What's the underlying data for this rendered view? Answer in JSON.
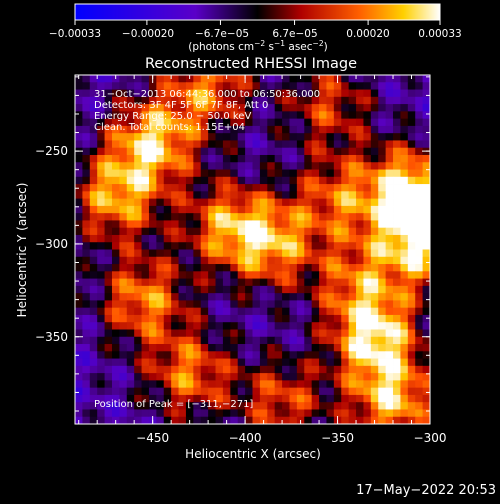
{
  "chart_data": {
    "type": "heatmap",
    "title": "Reconstructed RHESSI Image",
    "xlabel": "Heliocentric X (arcsec)",
    "ylabel": "Heliocentric Y (arcsec)",
    "xlim": [
      -492,
      -300
    ],
    "ylim": [
      -397,
      -209
    ],
    "xticks": [
      -450,
      -400,
      -350,
      -300
    ],
    "xtick_labels": [
      "−450",
      "−400",
      "−350",
      "−300"
    ],
    "yticks": [
      -250,
      -300,
      -350
    ],
    "ytick_labels": [
      "−250",
      "−300",
      "−350"
    ],
    "colorbar": {
      "ticks": [
        -0.00033,
        -0.0002,
        -6.7e-05,
        6.7e-05,
        0.0002,
        0.00033
      ],
      "tick_labels": [
        "−0.00033",
        "−0.00020",
        "−6.7e−05",
        "6.7e−05",
        "0.00020",
        "0.00033"
      ],
      "units_prefix": "(photons cm",
      "units_sup1": "−2",
      "units_mid1": " s",
      "units_sup2": "−1",
      "units_mid2": " asec",
      "units_sup3": "−2",
      "units_suffix": ")"
    },
    "annotations": [
      "31−Oct−2013 06:44:36.000 to 06:50:36.000",
      "Detectors: 3F 4F 5F 6F 7F 8F, Att 0",
      "Energy Range: 25.0 − 50.0 keV",
      "Clean.  Total counts: 1.15E+04",
      "Position of Peak = [−311,−271]"
    ],
    "grid_rows": 48,
    "grid_cols": 48,
    "hotspots": [
      {
        "x": -311,
        "y": -271,
        "amp": 1.0
      },
      {
        "x": -305,
        "y": -300,
        "amp": 0.9
      },
      {
        "x": -330,
        "y": -350,
        "amp": 0.95
      },
      {
        "x": -320,
        "y": -385,
        "amp": 0.85
      },
      {
        "x": -450,
        "y": -245,
        "amp": 0.9
      },
      {
        "x": -470,
        "y": -275,
        "amp": 0.8
      },
      {
        "x": -455,
        "y": -330,
        "amp": 0.75
      },
      {
        "x": -430,
        "y": -370,
        "amp": 0.7
      },
      {
        "x": -385,
        "y": -300,
        "amp": 0.75
      },
      {
        "x": -410,
        "y": -290,
        "amp": 0.7
      },
      {
        "x": -350,
        "y": -275,
        "amp": 0.6
      },
      {
        "x": -420,
        "y": -215,
        "amp": 0.7
      },
      {
        "x": -355,
        "y": -225,
        "amp": 0.55
      },
      {
        "x": -380,
        "y": -385,
        "amp": 0.6
      },
      {
        "x": -340,
        "y": -320,
        "amp": 0.55
      }
    ]
  },
  "footer": {
    "timestamp": "17−May−2022 20:53"
  }
}
